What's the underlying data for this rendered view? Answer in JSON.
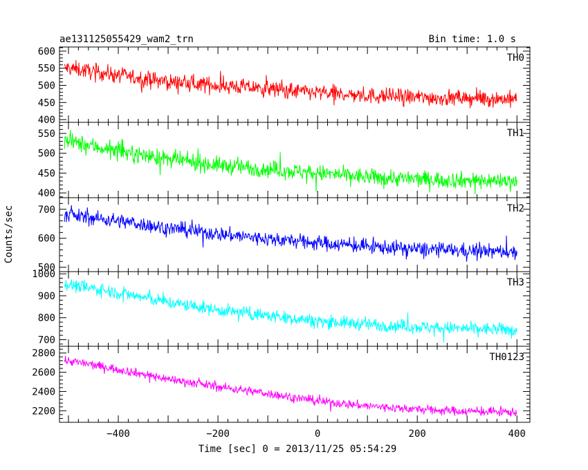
{
  "header": {
    "title": "ae131125055429_wam2_trn",
    "bin_time": "Bin time: 1.0 s"
  },
  "axes": {
    "xlabel": "Time [sec] 0 = 2013/11/25 05:54:29",
    "ylabel": "Counts/sec",
    "xlim": [
      -518,
      426
    ],
    "xticks": [
      -400,
      -200,
      0,
      200,
      400
    ],
    "xtick_labels": [
      "−400",
      "−200",
      "0",
      "200",
      "400"
    ]
  },
  "chart_data": [
    {
      "type": "line",
      "name": "TH0",
      "color": "#ff0000",
      "ylim": [
        392,
        612
      ],
      "yticks": [
        400,
        450,
        500,
        550,
        600
      ],
      "x_range": [
        -508,
        400
      ],
      "trend": {
        "x": [
          -500,
          -400,
          -300,
          -200,
          -100,
          0,
          100,
          200,
          300,
          400
        ],
        "y": [
          550,
          530,
          510,
          500,
          490,
          478,
          470,
          465,
          462,
          460
        ]
      },
      "noise_amplitude": 28
    },
    {
      "type": "line",
      "name": "TH1",
      "color": "#00ff00",
      "ylim": [
        388,
        578
      ],
      "yticks": [
        400,
        450,
        500,
        550
      ],
      "x_range": [
        -508,
        400
      ],
      "trend": {
        "x": [
          -500,
          -400,
          -300,
          -200,
          -100,
          0,
          100,
          200,
          300,
          400
        ],
        "y": [
          530,
          505,
          485,
          470,
          460,
          450,
          440,
          435,
          432,
          430
        ]
      },
      "noise_amplitude": 25
    },
    {
      "type": "line",
      "name": "TH2",
      "color": "#0000ff",
      "ylim": [
        485,
        740
      ],
      "yticks": [
        500,
        600,
        700
      ],
      "x_range": [
        -508,
        400
      ],
      "trend": {
        "x": [
          -500,
          -400,
          -300,
          -200,
          -100,
          0,
          100,
          200,
          300,
          400
        ],
        "y": [
          680,
          660,
          635,
          615,
          598,
          585,
          572,
          563,
          557,
          553
        ]
      },
      "noise_amplitude": 30
    },
    {
      "type": "line",
      "name": "TH3",
      "color": "#00ffff",
      "ylim": [
        670,
        1010
      ],
      "yticks": [
        700,
        800,
        900,
        1000
      ],
      "x_range": [
        -508,
        400
      ],
      "trend": {
        "x": [
          -500,
          -400,
          -300,
          -200,
          -100,
          0,
          100,
          200,
          300,
          400
        ],
        "y": [
          950,
          915,
          870,
          835,
          810,
          785,
          770,
          758,
          750,
          745
        ]
      },
      "noise_amplitude": 35
    },
    {
      "type": "line",
      "name": "TH0123",
      "color": "#ff00ff",
      "ylim": [
        2080,
        2870
      ],
      "yticks": [
        2200,
        2400,
        2600,
        2800
      ],
      "x_range": [
        -508,
        400
      ],
      "trend": {
        "x": [
          -500,
          -400,
          -300,
          -200,
          -100,
          0,
          100,
          200,
          300,
          400
        ],
        "y": [
          2720,
          2630,
          2530,
          2450,
          2380,
          2300,
          2250,
          2215,
          2195,
          2185
        ]
      },
      "noise_amplitude": 55
    }
  ]
}
